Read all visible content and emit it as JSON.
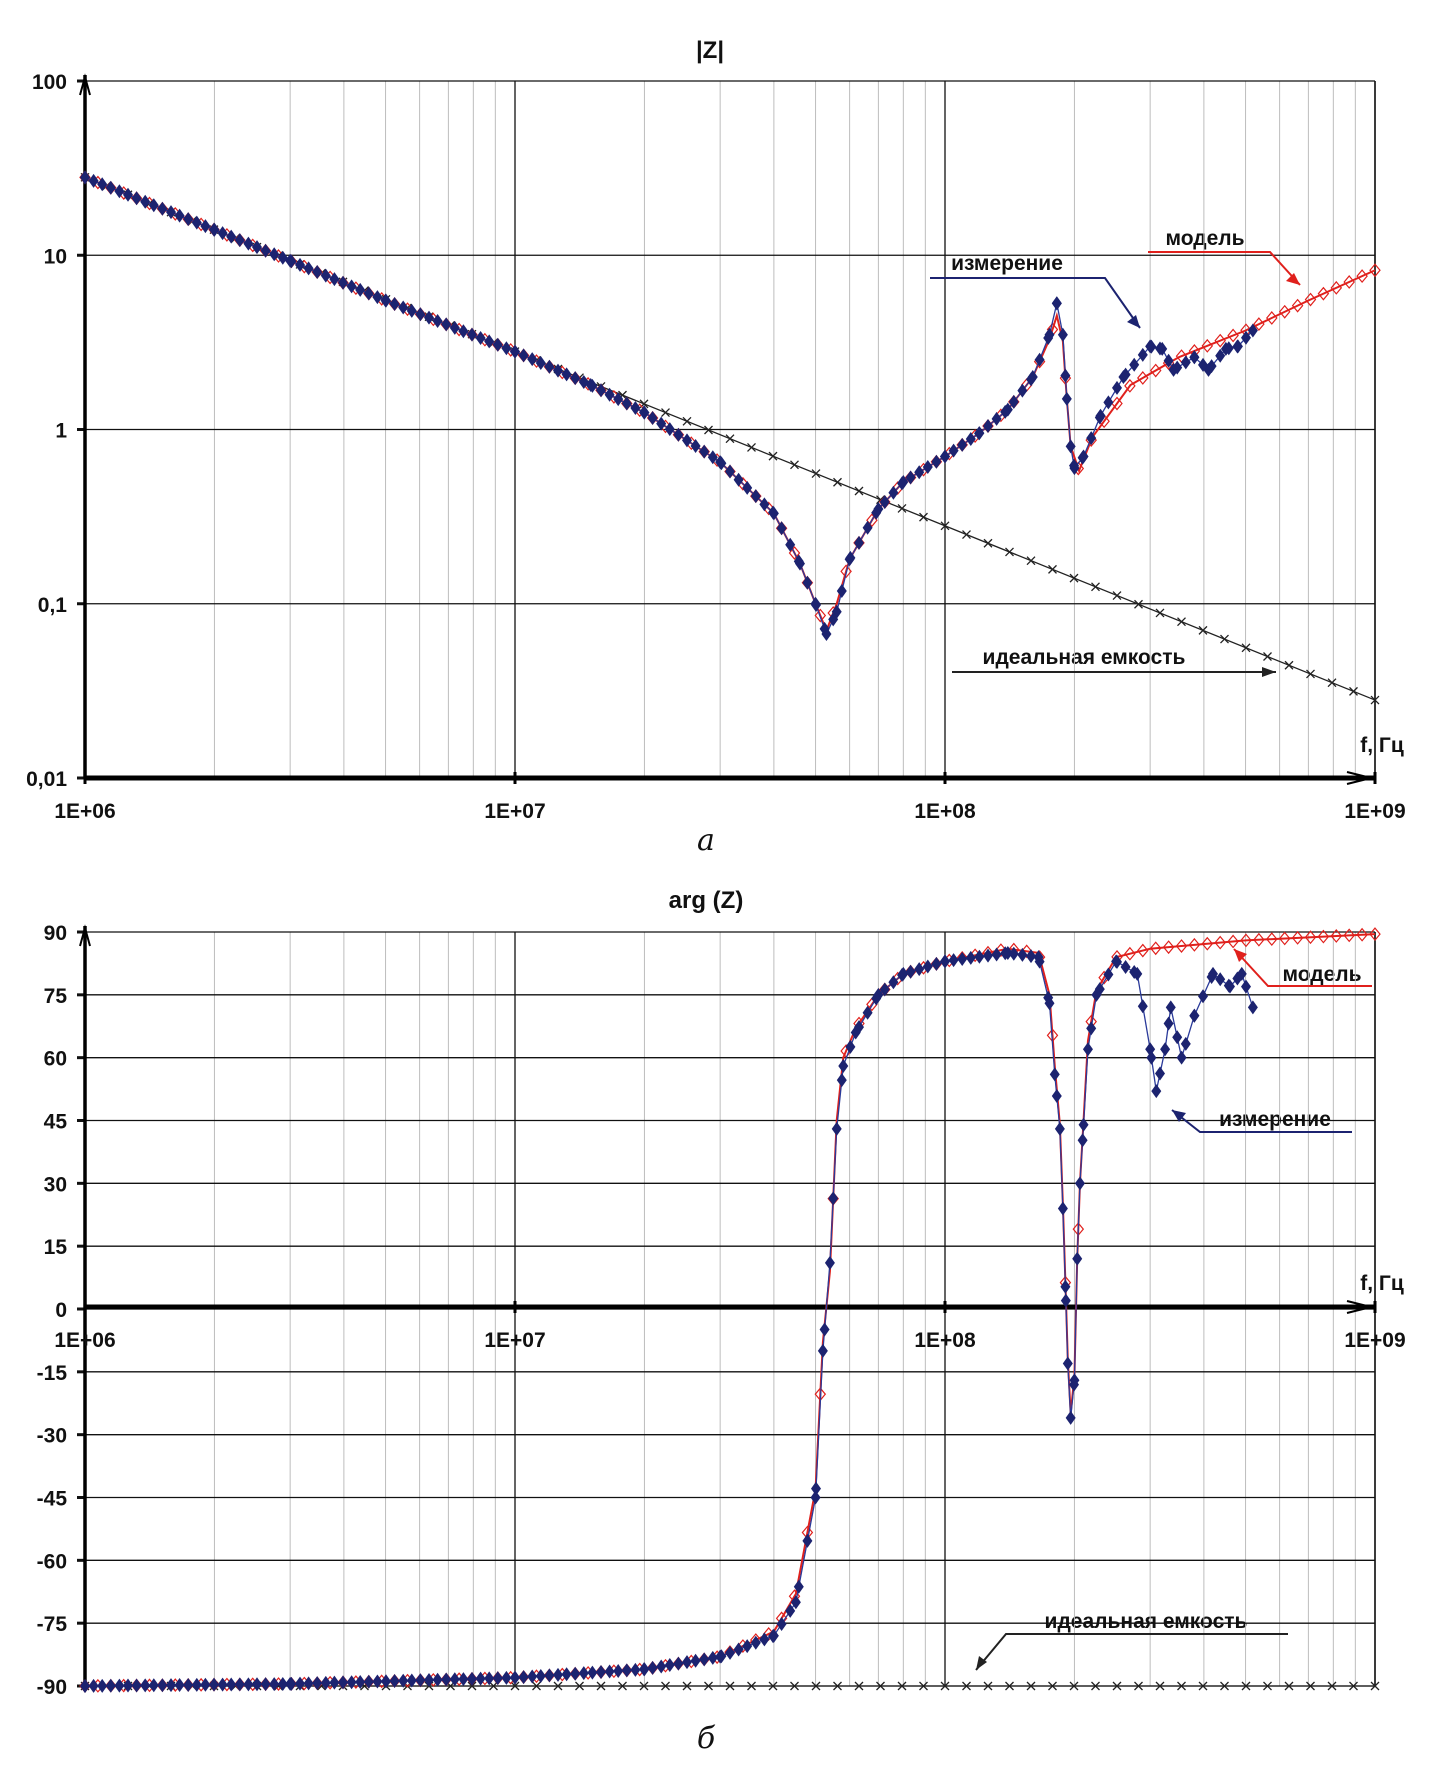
{
  "colors": {
    "measurement": "#1c2370",
    "model": "#e0201c",
    "ideal": "#222222"
  },
  "chart_data": [
    {
      "type": "line",
      "title": "|Z|",
      "caption": "а",
      "xlabel": "f, Гц",
      "x_scale": "log",
      "y_scale": "log",
      "xlim": [
        1000000.0,
        1000000000.0
      ],
      "ylim": [
        0.01,
        100
      ],
      "x_ticks": [
        "1E+06",
        "1E+07",
        "1E+08",
        "1E+09"
      ],
      "y_ticks": [
        "100",
        "10",
        "1",
        "0,1",
        "0,01"
      ],
      "grid": true,
      "annotations": {
        "model": "модель",
        "measurement": "измерение",
        "ideal": "идеальная емкость"
      },
      "series": [
        {
          "name": "измерение",
          "marker": "filled-diamond",
          "x": [
            1000000.0,
            2000000.0,
            3000000.0,
            5000000.0,
            10000000.0,
            15000000.0,
            20000000.0,
            30000000.0,
            40000000.0,
            46000000.0,
            50000000.0,
            53000000.0,
            56000000.0,
            60000000.0,
            70000000.0,
            80000000.0,
            100000000.0,
            120000000.0,
            140000000.0,
            160000000.0,
            175000000.0,
            182000000.0,
            188000000.0,
            192000000.0,
            196000000.0,
            200000000.0,
            210000000.0,
            230000000.0,
            260000000.0,
            300000000.0,
            320000000.0,
            340000000.0,
            380000000.0,
            410000000.0,
            450000000.0,
            480000000.0,
            520000000.0
          ],
          "y": [
            28,
            14,
            9.3,
            5.5,
            2.8,
            1.8,
            1.25,
            0.65,
            0.33,
            0.17,
            0.1,
            0.067,
            0.09,
            0.18,
            0.35,
            0.5,
            0.7,
            0.95,
            1.3,
            2.0,
            3.5,
            5.3,
            3.5,
            1.5,
            0.8,
            0.6,
            0.7,
            1.2,
            2.0,
            3.0,
            2.9,
            2.2,
            2.6,
            2.2,
            2.9,
            3.0,
            3.7
          ]
        },
        {
          "name": "модель",
          "marker": "hollow-diamond",
          "x": [
            1000000.0,
            2000000.0,
            3000000.0,
            5000000.0,
            10000000.0,
            15000000.0,
            20000000.0,
            30000000.0,
            40000000.0,
            46000000.0,
            50000000.0,
            53000000.0,
            56000000.0,
            60000000.0,
            70000000.0,
            80000000.0,
            100000000.0,
            120000000.0,
            140000000.0,
            160000000.0,
            175000000.0,
            182000000.0,
            188000000.0,
            192000000.0,
            196000000.0,
            205000000.0,
            220000000.0,
            270000000.0,
            350000000.0,
            500000000.0,
            700000000.0,
            1000000000.0
          ],
          "y": [
            28,
            14,
            9.3,
            5.5,
            2.8,
            1.8,
            1.25,
            0.65,
            0.33,
            0.17,
            0.1,
            0.07,
            0.1,
            0.18,
            0.35,
            0.5,
            0.7,
            0.95,
            1.3,
            2.0,
            3.3,
            4.5,
            3.2,
            1.5,
            0.8,
            0.58,
            0.9,
            1.8,
            2.6,
            3.7,
            5.5,
            8.2
          ]
        },
        {
          "name": "идеальная емкость",
          "marker": "x",
          "x": [
            1000000.0,
            1000000000.0
          ],
          "y": [
            28,
            0.028
          ]
        }
      ]
    },
    {
      "type": "line",
      "title": "arg (Z)",
      "caption": "б",
      "xlabel": "f, Гц",
      "x_scale": "log",
      "xlim": [
        1000000.0,
        1000000000.0
      ],
      "ylim": [
        -90,
        90
      ],
      "x_ticks": [
        "1E+06",
        "1E+07",
        "1E+08",
        "1E+09"
      ],
      "y_ticks": [
        "90",
        "75",
        "60",
        "45",
        "30",
        "15",
        "0",
        "-15",
        "-30",
        "-45",
        "-60",
        "-75",
        "-90"
      ],
      "grid": true,
      "annotations": {
        "model": "модель",
        "measurement": "измерение",
        "ideal": "идеальная емкость"
      },
      "series": [
        {
          "name": "измерение",
          "marker": "filled-diamond",
          "x": [
            1000000.0,
            3000000.0,
            10000000.0,
            20000000.0,
            30000000.0,
            40000000.0,
            45000000.0,
            50000000.0,
            52000000.0,
            54000000.0,
            56000000.0,
            58000000.0,
            62000000.0,
            70000000.0,
            80000000.0,
            100000000.0,
            140000000.0,
            165000000.0,
            175000000.0,
            180000000.0,
            185000000.0,
            188000000.0,
            191000000.0,
            193000000.0,
            196000000.0,
            200000000.0,
            203000000.0,
            206000000.0,
            210000000.0,
            215000000.0,
            225000000.0,
            250000000.0,
            280000000.0,
            300000000.0,
            310000000.0,
            325000000.0,
            335000000.0,
            355000000.0,
            380000000.0,
            420000000.0,
            460000000.0,
            490000000.0,
            520000000.0
          ],
          "y": [
            -90,
            -89.5,
            -88,
            -86,
            -83,
            -78,
            -70,
            -45,
            -10,
            11,
            43,
            58,
            66,
            75,
            80,
            83,
            85,
            84,
            73,
            56,
            43,
            24,
            2,
            -13,
            -26,
            -17,
            12,
            30,
            44,
            62,
            75,
            83,
            80,
            62,
            52,
            62,
            72,
            60,
            70,
            80,
            77,
            80,
            72
          ]
        },
        {
          "name": "модель",
          "marker": "hollow-diamond",
          "x": [
            1000000.0,
            3000000.0,
            10000000.0,
            20000000.0,
            30000000.0,
            40000000.0,
            45000000.0,
            50000000.0,
            52000000.0,
            54000000.0,
            56000000.0,
            58000000.0,
            62000000.0,
            70000000.0,
            80000000.0,
            100000000.0,
            140000000.0,
            165000000.0,
            175000000.0,
            180000000.0,
            185000000.0,
            188000000.0,
            191000000.0,
            193000000.0,
            196000000.0,
            200000000.0,
            203000000.0,
            206000000.0,
            210000000.0,
            215000000.0,
            225000000.0,
            250000000.0,
            300000000.0,
            500000000.0,
            1000000000.0
          ],
          "y": [
            -90,
            -89.5,
            -88,
            -86,
            -83,
            -77,
            -68,
            -43,
            -8,
            9,
            45,
            60,
            67,
            75,
            80,
            83,
            86,
            85,
            75,
            58,
            44,
            25,
            3,
            -12,
            -25,
            -16,
            12,
            30,
            45,
            64,
            76,
            84,
            86,
            88,
            89.5
          ]
        },
        {
          "name": "идеальная емкость",
          "marker": "x",
          "x": [
            1000000.0,
            1000000000.0
          ],
          "y": [
            -90,
            -90
          ]
        }
      ]
    }
  ]
}
